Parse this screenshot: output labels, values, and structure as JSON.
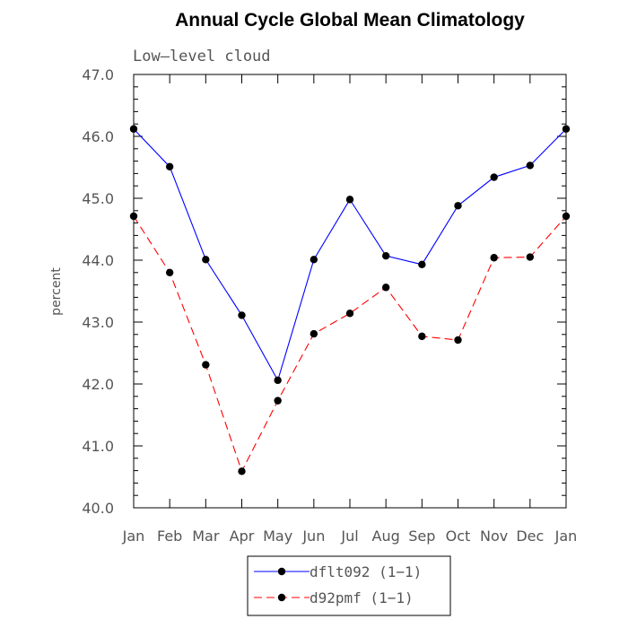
{
  "chart_data": {
    "type": "line",
    "title": "Annual Cycle Global Mean Climatology",
    "subtitle": "Low—level cloud",
    "ylabel": "percent",
    "xlabel": "",
    "categories": [
      "Jan",
      "Feb",
      "Mar",
      "Apr",
      "May",
      "Jun",
      "Jul",
      "Aug",
      "Sep",
      "Oct",
      "Nov",
      "Dec",
      "Jan"
    ],
    "ylim": [
      40.0,
      47.0
    ],
    "yticks": [
      "40.0",
      "41.0",
      "42.0",
      "43.0",
      "44.0",
      "45.0",
      "46.0",
      "47.0"
    ],
    "grid": false,
    "legend_position": "bottom-center",
    "series": [
      {
        "name": "dflt092 (1−1)",
        "color": "#0000ff",
        "dash": "solid",
        "values": [
          46.12,
          45.51,
          44.01,
          43.11,
          42.06,
          44.01,
          44.98,
          44.07,
          43.93,
          44.88,
          45.34,
          45.53,
          46.12
        ]
      },
      {
        "name": "d92pmf (1−1)",
        "color": "#ff0000",
        "dash": "dashed",
        "values": [
          44.71,
          43.8,
          42.31,
          40.59,
          41.73,
          42.81,
          43.14,
          43.56,
          42.77,
          42.71,
          44.04,
          44.05,
          44.71
        ]
      }
    ]
  }
}
